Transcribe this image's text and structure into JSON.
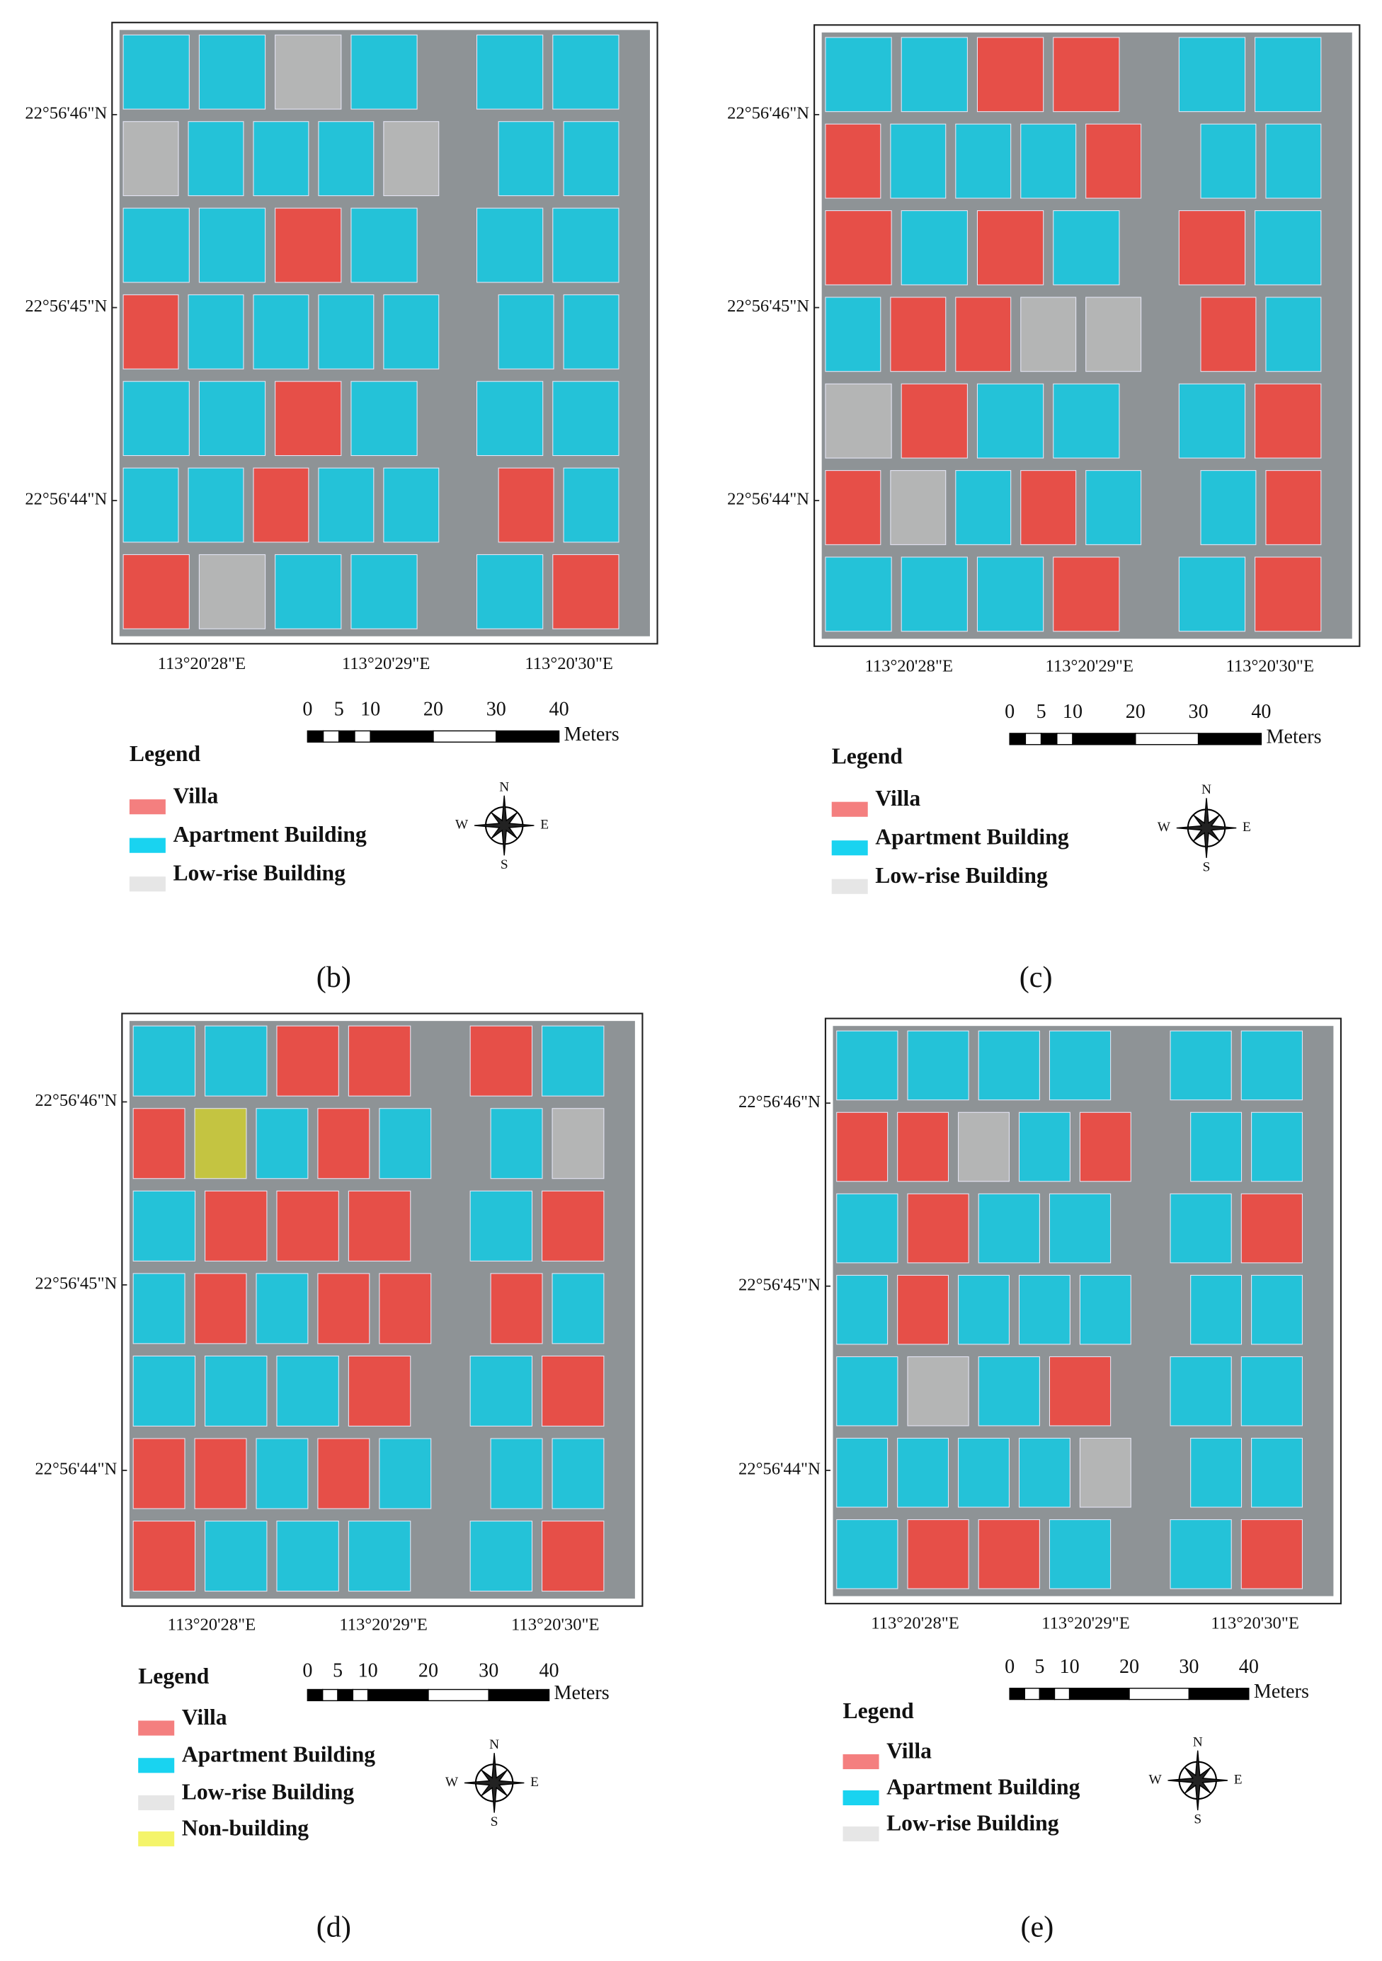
{
  "panels": [
    {
      "label": "(b)",
      "lat_labels": [
        "22°56'46\"N",
        "22°56'45\"N",
        "22°56'44\"N"
      ],
      "lon_labels": [
        "113°20'28\"E",
        "113°20'29\"E",
        "113°20'30\"E"
      ],
      "scale_ticks": [
        0,
        5,
        10,
        20,
        30,
        40
      ],
      "scale_unit": "Meters",
      "legend_title": "Legend",
      "legend": [
        {
          "name": "Villa",
          "color": "#f47f7f"
        },
        {
          "name": "Apartment Building",
          "color": "#19d3f0"
        },
        {
          "name": "Low-rise Building",
          "color": "#e6e6e6"
        }
      ],
      "compass": {
        "n": "N",
        "e": "E",
        "s": "S",
        "w": "W"
      }
    },
    {
      "label": "(c)",
      "lat_labels": [
        "22°56'46\"N",
        "22°56'45\"N",
        "22°56'44\"N"
      ],
      "lon_labels": [
        "113°20'28\"E",
        "113°20'29\"E",
        "113°20'30\"E"
      ],
      "scale_ticks": [
        0,
        5,
        10,
        20,
        30,
        40
      ],
      "scale_unit": "Meters",
      "legend_title": "Legend",
      "legend": [
        {
          "name": "Villa",
          "color": "#f47f7f"
        },
        {
          "name": "Apartment Building",
          "color": "#19d3f0"
        },
        {
          "name": "Low-rise Building",
          "color": "#e6e6e6"
        }
      ],
      "compass": {
        "n": "N",
        "e": "E",
        "s": "S",
        "w": "W"
      }
    },
    {
      "label": "(d)",
      "lat_labels": [
        "22°56'46\"N",
        "22°56'45\"N",
        "22°56'44\"N"
      ],
      "lon_labels": [
        "113°20'28\"E",
        "113°20'29\"E",
        "113°20'30\"E"
      ],
      "scale_ticks": [
        0,
        5,
        10,
        20,
        30,
        40
      ],
      "scale_unit": "Meters",
      "legend_title": "Legend",
      "legend": [
        {
          "name": "Villa",
          "color": "#f47f7f"
        },
        {
          "name": "Apartment Building",
          "color": "#19d3f0"
        },
        {
          "name": "Low-rise Building",
          "color": "#e6e6e6"
        },
        {
          "name": "Non-building",
          "color": "#f4f46a"
        }
      ],
      "compass": {
        "n": "N",
        "e": "E",
        "s": "S",
        "w": "W"
      }
    },
    {
      "label": "(e)",
      "lat_labels": [
        "22°56'46\"N",
        "22°56'45\"N",
        "22°56'44\"N"
      ],
      "lon_labels": [
        "113°20'28\"E",
        "113°20'29\"E",
        "113°20'30\"E"
      ],
      "scale_ticks": [
        0,
        5,
        10,
        20,
        30,
        40
      ],
      "scale_unit": "Meters",
      "legend_title": "Legend",
      "legend": [
        {
          "name": "Villa",
          "color": "#f47f7f"
        },
        {
          "name": "Apartment Building",
          "color": "#19d3f0"
        },
        {
          "name": "Low-rise Building",
          "color": "#e6e6e6"
        }
      ],
      "compass": {
        "n": "N",
        "e": "E",
        "s": "S",
        "w": "W"
      }
    }
  ]
}
